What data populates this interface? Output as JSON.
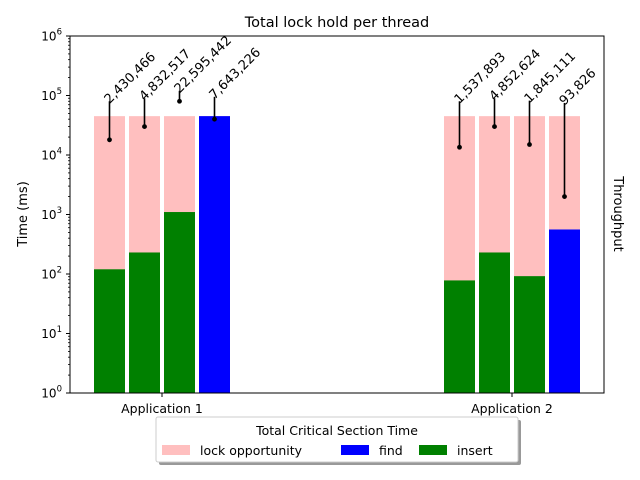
{
  "chart_data": {
    "type": "bar",
    "title": "Total lock hold per thread",
    "ylabel": "Time (ms)",
    "right_label": "Throughput",
    "yscale": "log",
    "ylim": [
      1,
      1000000
    ],
    "y_ticks": [
      {
        "value": 1,
        "base": "10",
        "exp": "0"
      },
      {
        "value": 10,
        "base": "10",
        "exp": "1"
      },
      {
        "value": 100,
        "base": "10",
        "exp": "2"
      },
      {
        "value": 1000,
        "base": "10",
        "exp": "3"
      },
      {
        "value": 10000,
        "base": "10",
        "exp": "4"
      },
      {
        "value": 100000,
        "base": "10",
        "exp": "5"
      },
      {
        "value": 1000000,
        "base": "10",
        "exp": "6"
      }
    ],
    "categories": [
      "Application 1",
      "Application 2"
    ],
    "legend": {
      "title": "Total Critical Section Time",
      "placement": "below-center",
      "entries": [
        {
          "name": "lock opportunity",
          "color": "#ffbfbf"
        },
        {
          "name": "find",
          "color": "#0000ff"
        },
        {
          "name": "insert",
          "color": "#008000"
        }
      ]
    },
    "groups": [
      {
        "category": "Application 1",
        "bars": [
          {
            "op": "insert",
            "value": 120,
            "lock_opportunity": 45000,
            "throughput_label": "2,430,466",
            "err_center": 18000,
            "err_top": 80000
          },
          {
            "op": "insert",
            "value": 230,
            "lock_opportunity": 45000,
            "throughput_label": "4,832,517",
            "err_center": 30000,
            "err_top": 90000
          },
          {
            "op": "insert",
            "value": 1100,
            "lock_opportunity": 45000,
            "throughput_label": "22,595,442",
            "err_center": 80000,
            "err_top": 120000
          },
          {
            "op": "find",
            "value": 45000,
            "lock_opportunity": 45000,
            "throughput_label": "7,643,226",
            "err_center": 40000,
            "err_top": 95000
          }
        ]
      },
      {
        "category": "Application 2",
        "bars": [
          {
            "op": "insert",
            "value": 78,
            "lock_opportunity": 45000,
            "throughput_label": "1,537,893",
            "err_center": 13500,
            "err_top": 80000
          },
          {
            "op": "insert",
            "value": 230,
            "lock_opportunity": 45000,
            "throughput_label": "4,852,624",
            "err_center": 30000,
            "err_top": 90000
          },
          {
            "op": "insert",
            "value": 92,
            "lock_opportunity": 45000,
            "throughput_label": "1,845,111",
            "err_center": 15000,
            "err_top": 82000
          },
          {
            "op": "find",
            "value": 560,
            "lock_opportunity": 45000,
            "throughput_label": "93,826",
            "err_center": 2000,
            "err_top": 75000
          }
        ]
      }
    ]
  }
}
